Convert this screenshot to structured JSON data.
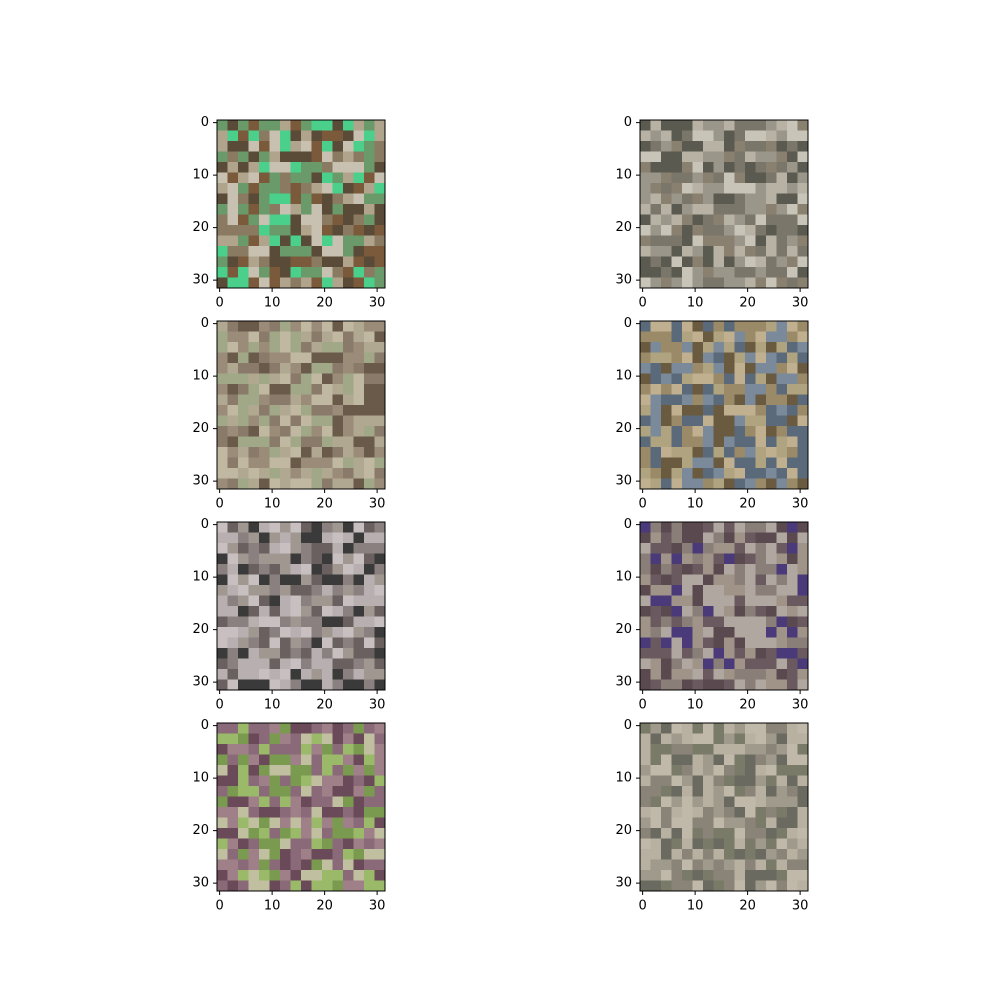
{
  "chart_data": [
    {
      "type": "image",
      "xlim": [
        -0.5,
        31.5
      ],
      "ylim": [
        31.5,
        -0.5
      ],
      "xticks": [
        0,
        10,
        20,
        30
      ],
      "yticks": [
        0,
        10,
        20,
        30
      ]
    },
    {
      "type": "image",
      "xlim": [
        -0.5,
        31.5
      ],
      "ylim": [
        31.5,
        -0.5
      ],
      "xticks": [
        0,
        10,
        20,
        30
      ],
      "yticks": [
        0,
        10,
        20,
        30
      ]
    },
    {
      "type": "image",
      "xlim": [
        -0.5,
        31.5
      ],
      "ylim": [
        31.5,
        -0.5
      ],
      "xticks": [
        0,
        10,
        20,
        30
      ],
      "yticks": [
        0,
        10,
        20,
        30
      ]
    },
    {
      "type": "image",
      "xlim": [
        -0.5,
        31.5
      ],
      "ylim": [
        31.5,
        -0.5
      ],
      "xticks": [
        0,
        10,
        20,
        30
      ],
      "yticks": [
        0,
        10,
        20,
        30
      ]
    },
    {
      "type": "image",
      "xlim": [
        -0.5,
        31.5
      ],
      "ylim": [
        31.5,
        -0.5
      ],
      "xticks": [
        0,
        10,
        20,
        30
      ],
      "yticks": [
        0,
        10,
        20,
        30
      ]
    },
    {
      "type": "image",
      "xlim": [
        -0.5,
        31.5
      ],
      "ylim": [
        31.5,
        -0.5
      ],
      "xticks": [
        0,
        10,
        20,
        30
      ],
      "yticks": [
        0,
        10,
        20,
        30
      ]
    },
    {
      "type": "image",
      "xlim": [
        -0.5,
        31.5
      ],
      "ylim": [
        31.5,
        -0.5
      ],
      "xticks": [
        0,
        10,
        20,
        30
      ],
      "yticks": [
        0,
        10,
        20,
        30
      ]
    },
    {
      "type": "image",
      "xlim": [
        -0.5,
        31.5
      ],
      "ylim": [
        31.5,
        -0.5
      ],
      "xticks": [
        0,
        10,
        20,
        30
      ],
      "yticks": [
        0,
        10,
        20,
        30
      ]
    }
  ]
}
